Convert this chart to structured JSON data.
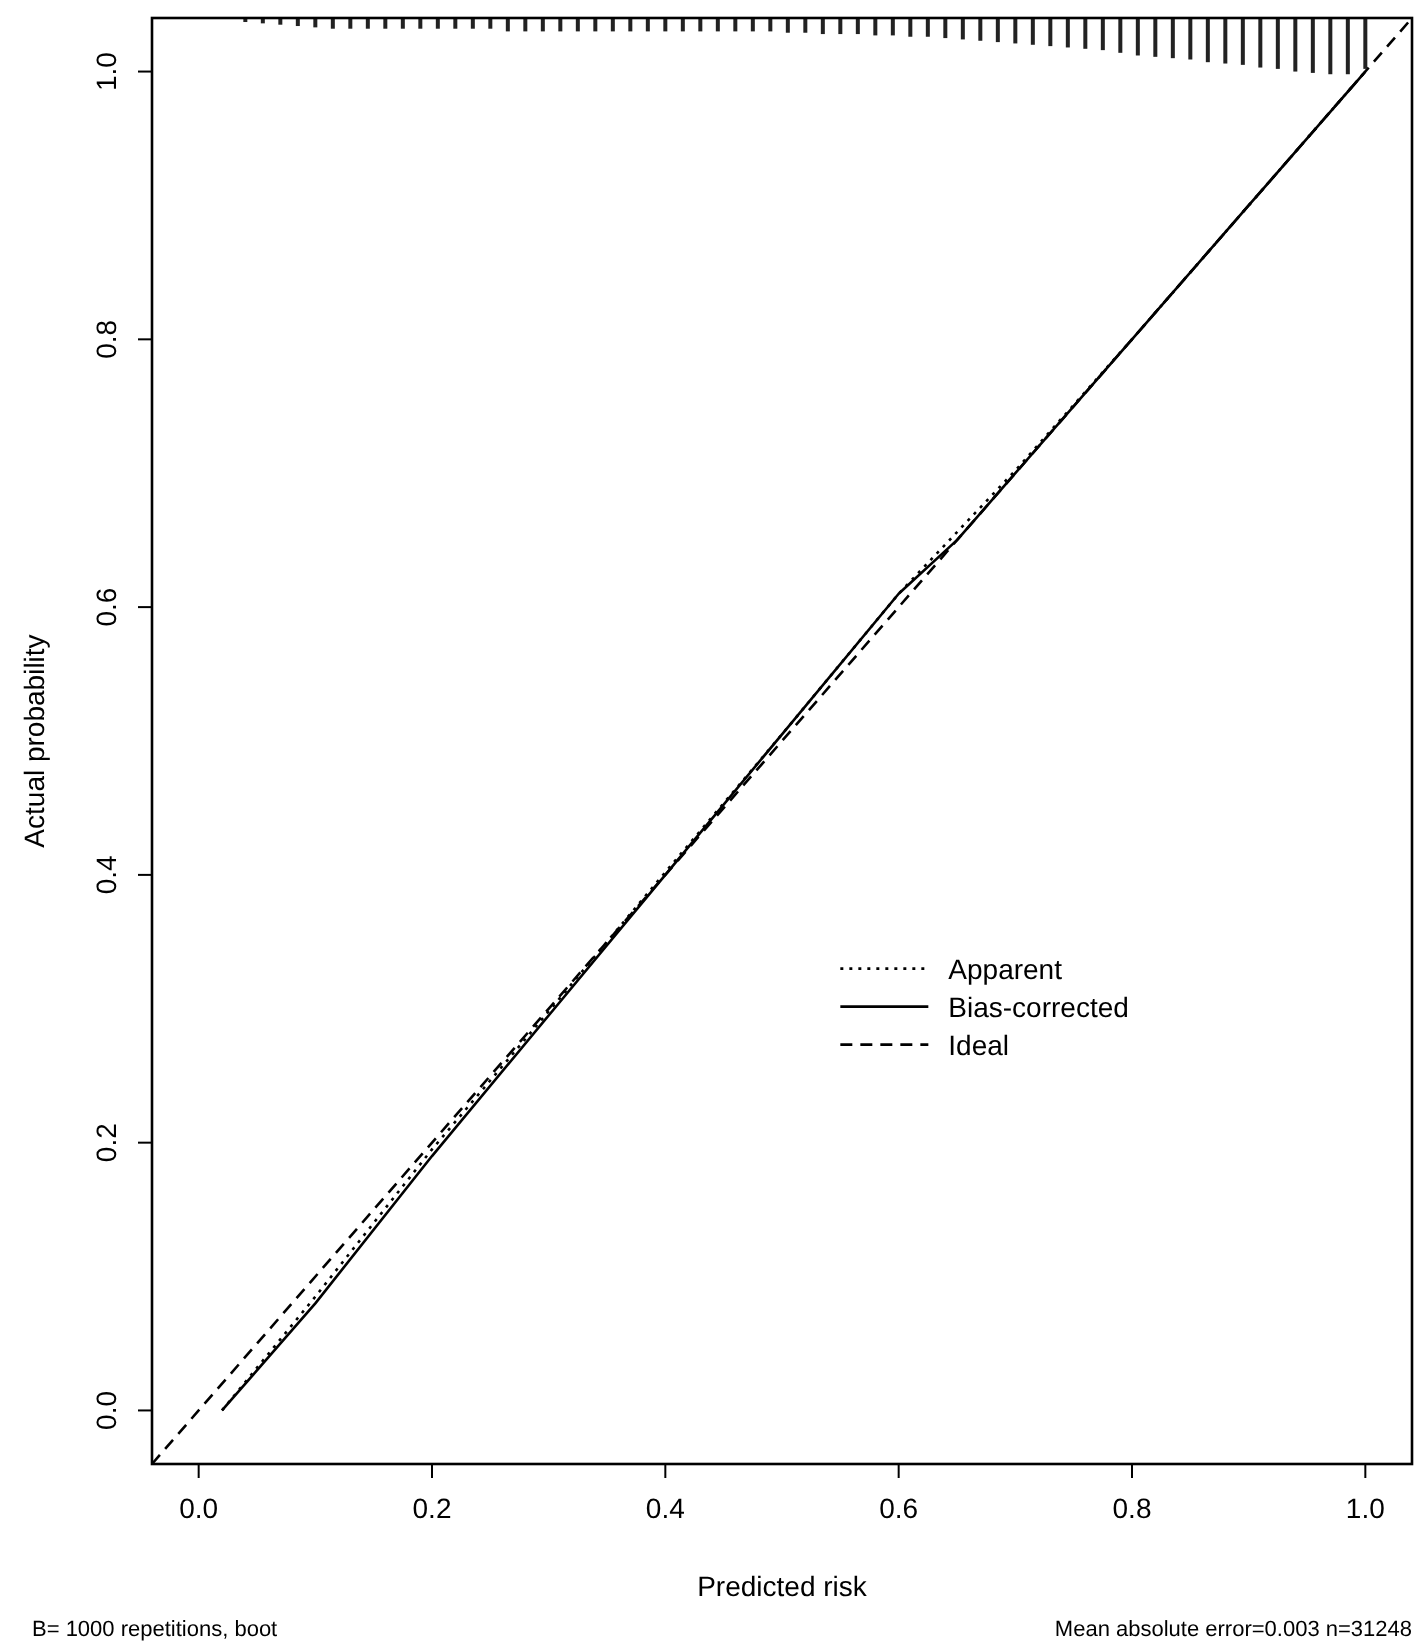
{
  "chart_data": {
    "type": "line",
    "xlabel": "Predicted risk",
    "ylabel": "Actual probability",
    "xlim": [
      -0.04,
      1.04
    ],
    "ylim": [
      -0.04,
      1.04
    ],
    "xticks": [
      {
        "value": 0,
        "label": "0.0"
      },
      0.2,
      0.4,
      0.6,
      0.8,
      {
        "value": 1,
        "label": "1.0"
      }
    ],
    "yticks": [
      {
        "value": 0,
        "label": "0.0"
      },
      0.2,
      0.4,
      0.6,
      0.8,
      {
        "value": 1,
        "label": "1.0"
      }
    ],
    "legend": "bottom right",
    "grid": false,
    "annotations": [
      "B= 1000 repetitions, boot",
      "Mean absolute error=0.003 n=31248"
    ],
    "series": [
      {
        "name": "Apparent",
        "color": "#000000",
        "line_style": "dotted",
        "x": [
          0.02,
          0.1,
          0.2,
          0.3,
          0.4,
          0.5,
          0.6,
          0.7,
          0.8,
          0.9,
          1.0
        ],
        "values": [
          0.0,
          0.085,
          0.195,
          0.298,
          0.402,
          0.505,
          0.61,
          0.702,
          0.8,
          0.9,
          1.0
        ]
      },
      {
        "name": "Bias-corrected",
        "color": "#000000",
        "line_style": "solid",
        "x": [
          0.02,
          0.1,
          0.2,
          0.3,
          0.4,
          0.5,
          0.6,
          0.65,
          0.7,
          0.8,
          0.9,
          1.0
        ],
        "values": [
          0.0,
          0.08,
          0.19,
          0.295,
          0.4,
          0.505,
          0.61,
          0.65,
          0.7,
          0.8,
          0.9,
          1.0
        ]
      },
      {
        "name": "Ideal",
        "color": "#000000",
        "line_style": "dashed",
        "x": [
          -0.04,
          1.04
        ],
        "values": [
          -0.04,
          1.04
        ]
      },
      {
        "type": "bar",
        "color": "#222222",
        "x": [
          0.04,
          0.055,
          0.07,
          0.085,
          0.1,
          0.115,
          0.13,
          0.145,
          0.16,
          0.175,
          0.19,
          0.205,
          0.22,
          0.235,
          0.25,
          0.265,
          0.28,
          0.295,
          0.31,
          0.325,
          0.34,
          0.355,
          0.37,
          0.385,
          0.4,
          0.415,
          0.43,
          0.445,
          0.46,
          0.475,
          0.49,
          0.505,
          0.52,
          0.535,
          0.55,
          0.565,
          0.58,
          0.595,
          0.61,
          0.625,
          0.64,
          0.655,
          0.67,
          0.685,
          0.7,
          0.715,
          0.73,
          0.745,
          0.76,
          0.775,
          0.79,
          0.805,
          0.82,
          0.835,
          0.85,
          0.865,
          0.88,
          0.895,
          0.91,
          0.925,
          0.94,
          0.955,
          0.97,
          0.985,
          1.0
        ],
        "base": [
          1.04,
          1.04,
          1.04,
          1.04,
          1.04,
          1.04,
          1.04,
          1.04,
          1.04,
          1.04,
          1.04,
          1.04,
          1.04,
          1.04,
          1.04,
          1.04,
          1.04,
          1.04,
          1.04,
          1.04,
          1.04,
          1.04,
          1.04,
          1.04,
          1.04,
          1.04,
          1.04,
          1.04,
          1.04,
          1.04,
          1.04,
          1.04,
          1.04,
          1.04,
          1.04,
          1.04,
          1.04,
          1.04,
          1.04,
          1.04,
          1.04,
          1.04,
          1.04,
          1.04,
          1.04,
          1.04,
          1.04,
          1.04,
          1.04,
          1.04,
          1.04,
          1.04,
          1.04,
          1.04,
          1.04,
          1.04,
          1.04,
          1.04,
          1.04,
          1.04,
          1.04,
          1.04,
          1.04,
          1.04,
          1.04
        ],
        "values": [
          -0.003,
          -0.004,
          -0.005,
          -0.006,
          -0.007,
          -0.008,
          -0.008,
          -0.008,
          -0.008,
          -0.008,
          -0.008,
          -0.008,
          -0.008,
          -0.008,
          -0.008,
          -0.01,
          -0.01,
          -0.01,
          -0.01,
          -0.01,
          -0.01,
          -0.01,
          -0.01,
          -0.01,
          -0.01,
          -0.01,
          -0.01,
          -0.01,
          -0.01,
          -0.01,
          -0.01,
          -0.011,
          -0.011,
          -0.012,
          -0.012,
          -0.012,
          -0.013,
          -0.013,
          -0.014,
          -0.014,
          -0.015,
          -0.016,
          -0.017,
          -0.018,
          -0.019,
          -0.02,
          -0.021,
          -0.022,
          -0.023,
          -0.024,
          -0.026,
          -0.028,
          -0.029,
          -0.03,
          -0.031,
          -0.033,
          -0.034,
          -0.035,
          -0.037,
          -0.038,
          -0.04,
          -0.041,
          -0.042,
          -0.042,
          -0.038
        ]
      }
    ]
  }
}
